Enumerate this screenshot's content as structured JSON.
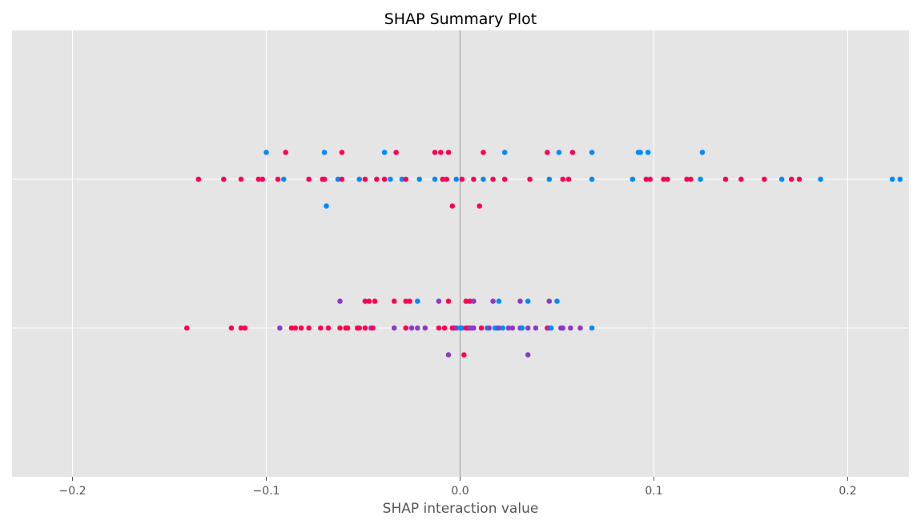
{
  "chart_data": {
    "type": "scatter",
    "title": "SHAP Summary Plot",
    "xlabel": "SHAP interaction value",
    "ylabel": "",
    "xlim": [
      -0.2,
      0.23
    ],
    "x_ticks": [
      -0.2,
      -0.1,
      0.0,
      0.1,
      0.2
    ],
    "x_tick_labels": [
      "−0.2",
      "−0.1",
      "0.0",
      "0.1",
      "0.2"
    ],
    "grid": true,
    "legend": "none",
    "colors": {
      "pink": "#ff0052",
      "blue": "#008bfb",
      "purple": "#8c3bc4",
      "background": "#e5e5e5",
      "grid": "#ffffff",
      "zero_line": "#999999"
    },
    "rows": [
      {
        "points": [
          {
            "x": -0.1,
            "o": -1,
            "c": "blue"
          },
          {
            "x": -0.09,
            "o": -1,
            "c": "pink"
          },
          {
            "x": -0.07,
            "o": -1,
            "c": "blue"
          },
          {
            "x": -0.061,
            "o": -1,
            "c": "pink"
          },
          {
            "x": -0.039,
            "o": -1,
            "c": "blue"
          },
          {
            "x": -0.033,
            "o": -1,
            "c": "pink"
          },
          {
            "x": -0.013,
            "o": -1,
            "c": "pink"
          },
          {
            "x": -0.01,
            "o": -1,
            "c": "pink"
          },
          {
            "x": -0.006,
            "o": -1,
            "c": "pink"
          },
          {
            "x": 0.012,
            "o": -1,
            "c": "pink"
          },
          {
            "x": 0.023,
            "o": -1,
            "c": "blue"
          },
          {
            "x": 0.045,
            "o": -1,
            "c": "pink"
          },
          {
            "x": 0.051,
            "o": -1,
            "c": "blue"
          },
          {
            "x": 0.058,
            "o": -1,
            "c": "pink"
          },
          {
            "x": 0.068,
            "o": -1,
            "c": "blue"
          },
          {
            "x": 0.092,
            "o": -1,
            "c": "blue"
          },
          {
            "x": 0.093,
            "o": -1,
            "c": "blue"
          },
          {
            "x": 0.097,
            "o": -1,
            "c": "blue"
          },
          {
            "x": 0.125,
            "o": -1,
            "c": "blue"
          },
          {
            "x": -0.135,
            "o": 0,
            "c": "pink"
          },
          {
            "x": -0.122,
            "o": 0,
            "c": "pink"
          },
          {
            "x": -0.113,
            "o": 0,
            "c": "pink"
          },
          {
            "x": -0.104,
            "o": 0,
            "c": "pink"
          },
          {
            "x": -0.102,
            "o": 0,
            "c": "pink"
          },
          {
            "x": -0.094,
            "o": 0,
            "c": "pink"
          },
          {
            "x": -0.091,
            "o": 0,
            "c": "blue"
          },
          {
            "x": -0.078,
            "o": 0,
            "c": "pink"
          },
          {
            "x": -0.071,
            "o": 0,
            "c": "pink"
          },
          {
            "x": -0.07,
            "o": 0,
            "c": "pink"
          },
          {
            "x": -0.063,
            "o": 0,
            "c": "blue"
          },
          {
            "x": -0.061,
            "o": 0,
            "c": "pink"
          },
          {
            "x": -0.052,
            "o": 0,
            "c": "blue"
          },
          {
            "x": -0.049,
            "o": 0,
            "c": "pink"
          },
          {
            "x": -0.043,
            "o": 0,
            "c": "pink"
          },
          {
            "x": -0.039,
            "o": 0,
            "c": "pink"
          },
          {
            "x": -0.036,
            "o": 0,
            "c": "blue"
          },
          {
            "x": -0.03,
            "o": 0,
            "c": "blue"
          },
          {
            "x": -0.028,
            "o": 0,
            "c": "pink"
          },
          {
            "x": -0.021,
            "o": 0,
            "c": "blue"
          },
          {
            "x": -0.013,
            "o": 0,
            "c": "blue"
          },
          {
            "x": -0.009,
            "o": 0,
            "c": "pink"
          },
          {
            "x": -0.007,
            "o": 0,
            "c": "pink"
          },
          {
            "x": -0.002,
            "o": 0,
            "c": "blue"
          },
          {
            "x": 0.001,
            "o": 0,
            "c": "pink"
          },
          {
            "x": 0.007,
            "o": 0,
            "c": "pink"
          },
          {
            "x": 0.012,
            "o": 0,
            "c": "blue"
          },
          {
            "x": 0.017,
            "o": 0,
            "c": "pink"
          },
          {
            "x": 0.023,
            "o": 0,
            "c": "pink"
          },
          {
            "x": 0.036,
            "o": 0,
            "c": "pink"
          },
          {
            "x": 0.046,
            "o": 0,
            "c": "blue"
          },
          {
            "x": 0.053,
            "o": 0,
            "c": "pink"
          },
          {
            "x": 0.056,
            "o": 0,
            "c": "pink"
          },
          {
            "x": 0.068,
            "o": 0,
            "c": "blue"
          },
          {
            "x": 0.089,
            "o": 0,
            "c": "blue"
          },
          {
            "x": 0.096,
            "o": 0,
            "c": "pink"
          },
          {
            "x": 0.098,
            "o": 0,
            "c": "pink"
          },
          {
            "x": 0.105,
            "o": 0,
            "c": "pink"
          },
          {
            "x": 0.107,
            "o": 0,
            "c": "pink"
          },
          {
            "x": 0.117,
            "o": 0,
            "c": "pink"
          },
          {
            "x": 0.119,
            "o": 0,
            "c": "pink"
          },
          {
            "x": 0.124,
            "o": 0,
            "c": "blue"
          },
          {
            "x": 0.137,
            "o": 0,
            "c": "pink"
          },
          {
            "x": 0.145,
            "o": 0,
            "c": "pink"
          },
          {
            "x": 0.157,
            "o": 0,
            "c": "pink"
          },
          {
            "x": 0.166,
            "o": 0,
            "c": "blue"
          },
          {
            "x": 0.171,
            "o": 0,
            "c": "pink"
          },
          {
            "x": 0.175,
            "o": 0,
            "c": "pink"
          },
          {
            "x": 0.186,
            "o": 0,
            "c": "blue"
          },
          {
            "x": 0.223,
            "o": 0,
            "c": "blue"
          },
          {
            "x": 0.227,
            "o": 0,
            "c": "blue"
          },
          {
            "x": -0.069,
            "o": 1,
            "c": "blue"
          },
          {
            "x": -0.004,
            "o": 1,
            "c": "pink"
          },
          {
            "x": 0.01,
            "o": 1,
            "c": "pink"
          }
        ]
      },
      {
        "points": [
          {
            "x": -0.062,
            "o": -1,
            "c": "purple"
          },
          {
            "x": -0.049,
            "o": -1,
            "c": "pink"
          },
          {
            "x": -0.047,
            "o": -1,
            "c": "pink"
          },
          {
            "x": -0.044,
            "o": -1,
            "c": "pink"
          },
          {
            "x": -0.034,
            "o": -1,
            "c": "pink"
          },
          {
            "x": -0.028,
            "o": -1,
            "c": "pink"
          },
          {
            "x": -0.026,
            "o": -1,
            "c": "pink"
          },
          {
            "x": -0.022,
            "o": -1,
            "c": "blue"
          },
          {
            "x": -0.011,
            "o": -1,
            "c": "purple"
          },
          {
            "x": -0.006,
            "o": -1,
            "c": "pink"
          },
          {
            "x": 0.003,
            "o": -1,
            "c": "pink"
          },
          {
            "x": 0.005,
            "o": -1,
            "c": "pink"
          },
          {
            "x": 0.007,
            "o": -1,
            "c": "purple"
          },
          {
            "x": 0.017,
            "o": -1,
            "c": "purple"
          },
          {
            "x": 0.02,
            "o": -1,
            "c": "blue"
          },
          {
            "x": 0.031,
            "o": -1,
            "c": "purple"
          },
          {
            "x": 0.035,
            "o": -1,
            "c": "blue"
          },
          {
            "x": 0.046,
            "o": -1,
            "c": "purple"
          },
          {
            "x": 0.05,
            "o": -1,
            "c": "blue"
          },
          {
            "x": -0.141,
            "o": 0,
            "c": "pink"
          },
          {
            "x": -0.118,
            "o": 0,
            "c": "pink"
          },
          {
            "x": -0.113,
            "o": 0,
            "c": "pink"
          },
          {
            "x": -0.111,
            "o": 0,
            "c": "pink"
          },
          {
            "x": -0.093,
            "o": 0,
            "c": "purple"
          },
          {
            "x": -0.087,
            "o": 0,
            "c": "pink"
          },
          {
            "x": -0.085,
            "o": 0,
            "c": "pink"
          },
          {
            "x": -0.082,
            "o": 0,
            "c": "pink"
          },
          {
            "x": -0.078,
            "o": 0,
            "c": "pink"
          },
          {
            "x": -0.072,
            "o": 0,
            "c": "pink"
          },
          {
            "x": -0.068,
            "o": 0,
            "c": "pink"
          },
          {
            "x": -0.062,
            "o": 0,
            "c": "pink"
          },
          {
            "x": -0.059,
            "o": 0,
            "c": "pink"
          },
          {
            "x": -0.058,
            "o": 0,
            "c": "pink"
          },
          {
            "x": -0.053,
            "o": 0,
            "c": "pink"
          },
          {
            "x": -0.052,
            "o": 0,
            "c": "pink"
          },
          {
            "x": -0.049,
            "o": 0,
            "c": "pink"
          },
          {
            "x": -0.046,
            "o": 0,
            "c": "purple"
          },
          {
            "x": -0.045,
            "o": 0,
            "c": "pink"
          },
          {
            "x": -0.034,
            "o": 0,
            "c": "purple"
          },
          {
            "x": -0.028,
            "o": 0,
            "c": "pink"
          },
          {
            "x": -0.025,
            "o": 0,
            "c": "purple"
          },
          {
            "x": -0.022,
            "o": 0,
            "c": "purple"
          },
          {
            "x": -0.018,
            "o": 0,
            "c": "purple"
          },
          {
            "x": -0.011,
            "o": 0,
            "c": "pink"
          },
          {
            "x": -0.008,
            "o": 0,
            "c": "pink"
          },
          {
            "x": -0.004,
            "o": 0,
            "c": "pink"
          },
          {
            "x": -0.003,
            "o": 0,
            "c": "pink"
          },
          {
            "x": -0.002,
            "o": 0,
            "c": "purple"
          },
          {
            "x": 0.0,
            "o": 0,
            "c": "blue"
          },
          {
            "x": 0.001,
            "o": 0,
            "c": "blue"
          },
          {
            "x": 0.003,
            "o": 0,
            "c": "pink"
          },
          {
            "x": 0.004,
            "o": 0,
            "c": "pink"
          },
          {
            "x": 0.005,
            "o": 0,
            "c": "purple"
          },
          {
            "x": 0.006,
            "o": 0,
            "c": "purple"
          },
          {
            "x": 0.007,
            "o": 0,
            "c": "purple"
          },
          {
            "x": 0.011,
            "o": 0,
            "c": "pink"
          },
          {
            "x": 0.014,
            "o": 0,
            "c": "blue"
          },
          {
            "x": 0.015,
            "o": 0,
            "c": "purple"
          },
          {
            "x": 0.018,
            "o": 0,
            "c": "blue"
          },
          {
            "x": 0.019,
            "o": 0,
            "c": "blue"
          },
          {
            "x": 0.02,
            "o": 0,
            "c": "purple"
          },
          {
            "x": 0.022,
            "o": 0,
            "c": "blue"
          },
          {
            "x": 0.025,
            "o": 0,
            "c": "purple"
          },
          {
            "x": 0.027,
            "o": 0,
            "c": "purple"
          },
          {
            "x": 0.031,
            "o": 0,
            "c": "purple"
          },
          {
            "x": 0.032,
            "o": 0,
            "c": "blue"
          },
          {
            "x": 0.035,
            "o": 0,
            "c": "purple"
          },
          {
            "x": 0.039,
            "o": 0,
            "c": "purple"
          },
          {
            "x": 0.045,
            "o": 0,
            "c": "pink"
          },
          {
            "x": 0.046,
            "o": 0,
            "c": "purple"
          },
          {
            "x": 0.047,
            "o": 0,
            "c": "blue"
          },
          {
            "x": 0.052,
            "o": 0,
            "c": "purple"
          },
          {
            "x": 0.053,
            "o": 0,
            "c": "purple"
          },
          {
            "x": 0.057,
            "o": 0,
            "c": "purple"
          },
          {
            "x": 0.062,
            "o": 0,
            "c": "purple"
          },
          {
            "x": 0.068,
            "o": 0,
            "c": "blue"
          },
          {
            "x": -0.006,
            "o": 1,
            "c": "purple"
          },
          {
            "x": 0.002,
            "o": 1,
            "c": "pink"
          },
          {
            "x": 0.035,
            "o": 1,
            "c": "purple"
          }
        ]
      }
    ]
  }
}
